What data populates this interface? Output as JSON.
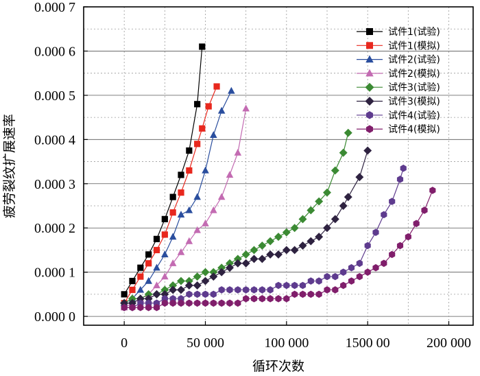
{
  "chart_data": {
    "type": "line",
    "title": "",
    "xlabel": "循环次数",
    "ylabel": "疲劳裂纹扩展速率",
    "xlim": [
      -25000,
      215000
    ],
    "ylim": [
      -2e-05,
      0.0007
    ],
    "x_ticks": [
      0,
      50000,
      100000,
      150000,
      200000
    ],
    "x_tick_labels": [
      "0",
      "50 000",
      "100 000",
      "1500 00",
      "200 000"
    ],
    "y_ticks": [
      0,
      0.0001,
      0.0002,
      0.0003,
      0.0004,
      0.0005,
      0.0006,
      0.0007
    ],
    "y_tick_labels": [
      "0.000 0",
      "0.000 1",
      "0.000 2",
      "0.000 3",
      "0.000 4",
      "0.000 5",
      "0.000 6",
      "0.000 7"
    ],
    "grid": true,
    "legend_position": "top-right",
    "series": [
      {
        "name": "试件1(试验)",
        "color": "#000000",
        "marker": "square",
        "x": [
          0,
          5000,
          10000,
          15000,
          20000,
          25000,
          30000,
          35000,
          40000,
          45000,
          48000
        ],
        "y": [
          5e-05,
          8e-05,
          0.00011,
          0.00014,
          0.000175,
          0.00022,
          0.00027,
          0.00032,
          0.000375,
          0.00048,
          0.00061
        ]
      },
      {
        "name": "试件1(模拟)",
        "color": "#e8281e",
        "marker": "square",
        "x": [
          0,
          5000,
          10000,
          15000,
          20000,
          25000,
          30000,
          35000,
          40000,
          45000,
          48000,
          52000,
          57000
        ],
        "y": [
          3e-05,
          6e-05,
          9e-05,
          0.00012,
          0.00015,
          0.000185,
          0.000235,
          0.00028,
          0.00033,
          0.00039,
          0.000425,
          0.000475,
          0.00052
        ]
      },
      {
        "name": "试件2(试验)",
        "color": "#2a4e9e",
        "marker": "triangle",
        "x": [
          0,
          5000,
          10000,
          15000,
          20000,
          25000,
          30000,
          35000,
          40000,
          45000,
          50000,
          55000,
          60000,
          66000
        ],
        "y": [
          3e-05,
          4e-05,
          6e-05,
          8e-05,
          0.00011,
          0.00014,
          0.00018,
          0.00023,
          0.00024,
          0.00027,
          0.00033,
          0.00041,
          0.000465,
          0.00051
        ]
      },
      {
        "name": "试件2(模拟)",
        "color": "#c36bb2",
        "marker": "triangle",
        "x": [
          0,
          5000,
          10000,
          15000,
          20000,
          25000,
          30000,
          35000,
          40000,
          45000,
          50000,
          55000,
          60000,
          65000,
          70000,
          75000
        ],
        "y": [
          2e-05,
          3e-05,
          4e-05,
          5e-05,
          7e-05,
          9e-05,
          0.00012,
          0.000145,
          0.00017,
          0.000195,
          0.00021,
          0.00024,
          0.00027,
          0.00032,
          0.00037,
          0.00047
        ]
      },
      {
        "name": "试件3(试验)",
        "color": "#3b8a33",
        "marker": "diamond",
        "x": [
          0,
          5000,
          10000,
          15000,
          20000,
          25000,
          30000,
          35000,
          40000,
          45000,
          50000,
          55000,
          60000,
          65000,
          70000,
          75000,
          80000,
          85000,
          90000,
          95000,
          100000,
          105000,
          110000,
          115000,
          120000,
          125000,
          130000,
          135000,
          138000
        ],
        "y": [
          3e-05,
          4e-05,
          4e-05,
          5e-05,
          5e-05,
          6e-05,
          7e-05,
          8e-05,
          8e-05,
          9e-05,
          0.0001,
          0.0001,
          0.00011,
          0.00012,
          0.00013,
          0.00014,
          0.00015,
          0.00016,
          0.00017,
          0.00018,
          0.00019,
          0.0002,
          0.00022,
          0.00024,
          0.00026,
          0.00028,
          0.00033,
          0.00037,
          0.000415
        ]
      },
      {
        "name": "试件3(模拟)",
        "color": "#2e2240",
        "marker": "diamond",
        "x": [
          0,
          5000,
          10000,
          15000,
          20000,
          25000,
          30000,
          35000,
          40000,
          45000,
          50000,
          55000,
          60000,
          65000,
          70000,
          75000,
          80000,
          85000,
          90000,
          95000,
          100000,
          105000,
          110000,
          115000,
          120000,
          125000,
          130000,
          135000,
          138000,
          145000,
          150000
        ],
        "y": [
          3e-05,
          3e-05,
          4e-05,
          4e-05,
          5e-05,
          5e-05,
          6e-05,
          6e-05,
          7e-05,
          7e-05,
          8e-05,
          9e-05,
          0.0001,
          0.00011,
          0.00012,
          0.00012,
          0.00013,
          0.00013,
          0.00014,
          0.00014,
          0.00015,
          0.00015,
          0.00016,
          0.00017,
          0.00018,
          0.0002,
          0.00022,
          0.00025,
          0.00027,
          0.000315,
          0.000375
        ]
      },
      {
        "name": "试件4(试验)",
        "color": "#5e3b8e",
        "marker": "hexagon",
        "x": [
          0,
          5000,
          10000,
          15000,
          20000,
          25000,
          30000,
          35000,
          40000,
          45000,
          50000,
          55000,
          60000,
          65000,
          70000,
          75000,
          80000,
          85000,
          90000,
          95000,
          100000,
          105000,
          110000,
          115000,
          120000,
          125000,
          130000,
          135000,
          140000,
          145000,
          150000,
          155000,
          160000,
          165000,
          170000,
          172000
        ],
        "y": [
          2e-05,
          2e-05,
          3e-05,
          3e-05,
          3e-05,
          4e-05,
          4e-05,
          4e-05,
          5e-05,
          5e-05,
          5e-05,
          5e-05,
          6e-05,
          6e-05,
          6e-05,
          6e-05,
          6e-05,
          6e-05,
          6e-05,
          7e-05,
          7e-05,
          7e-05,
          7e-05,
          8e-05,
          8e-05,
          9e-05,
          9e-05,
          0.0001,
          0.00011,
          0.00012,
          0.00016,
          0.00019,
          0.00023,
          0.00026,
          0.00031,
          0.000335
        ]
      },
      {
        "name": "试件4(模拟)",
        "color": "#801e6b",
        "marker": "hexagon",
        "x": [
          0,
          5000,
          10000,
          15000,
          20000,
          25000,
          30000,
          35000,
          40000,
          45000,
          50000,
          55000,
          60000,
          65000,
          70000,
          75000,
          80000,
          85000,
          90000,
          95000,
          100000,
          105000,
          110000,
          115000,
          120000,
          125000,
          130000,
          135000,
          140000,
          145000,
          150000,
          155000,
          160000,
          165000,
          170000,
          175000,
          180000,
          185000,
          190000
        ],
        "y": [
          2e-05,
          2e-05,
          2e-05,
          2e-05,
          2e-05,
          3e-05,
          3e-05,
          3e-05,
          3e-05,
          3e-05,
          3e-05,
          3e-05,
          3e-05,
          3e-05,
          3e-05,
          4e-05,
          4e-05,
          4e-05,
          4e-05,
          4e-05,
          4e-05,
          5e-05,
          5e-05,
          5e-05,
          5e-05,
          6e-05,
          6e-05,
          7e-05,
          8e-05,
          9e-05,
          0.0001,
          0.00011,
          0.00012,
          0.00014,
          0.00016,
          0.00018,
          0.00021,
          0.00024,
          0.000285
        ]
      }
    ]
  }
}
